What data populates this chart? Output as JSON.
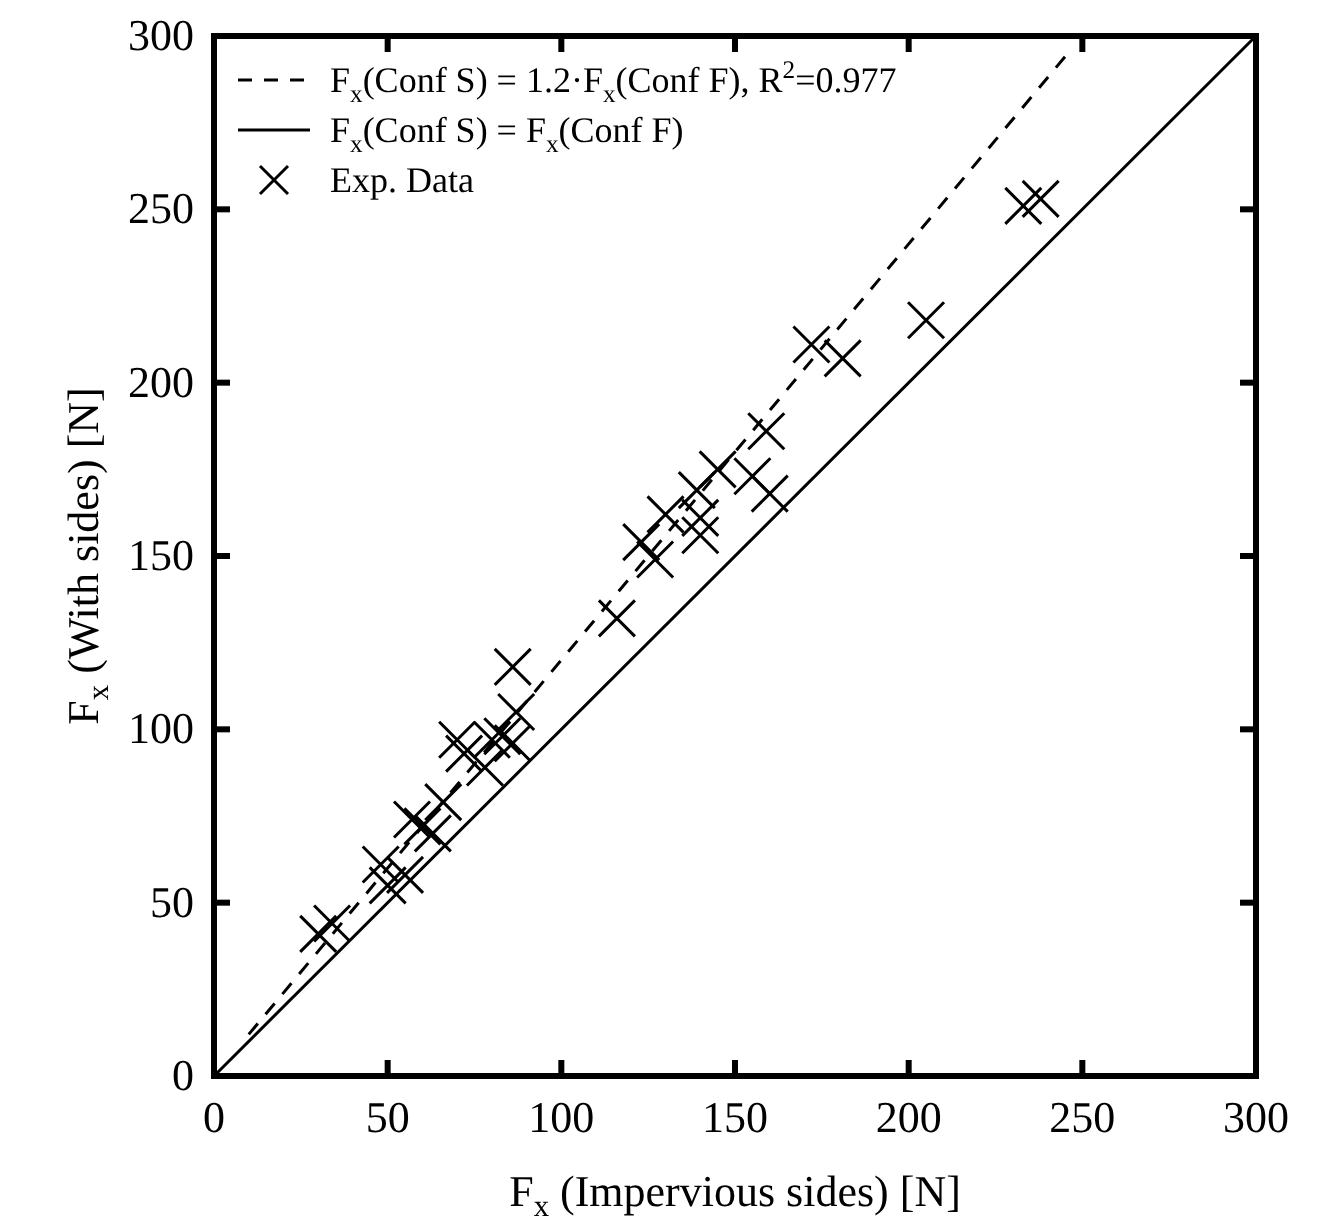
{
  "chart_data": {
    "type": "scatter",
    "xlabel": "F$_{x}$ (Impervious sides)  [N]",
    "ylabel": "F$_{x}$ (With sides)  [N]",
    "xlim": [
      0,
      300
    ],
    "ylim": [
      0,
      300
    ],
    "xticks": [
      0,
      50,
      100,
      150,
      200,
      250,
      300
    ],
    "yticks": [
      0,
      50,
      100,
      150,
      200,
      250,
      300
    ],
    "grid": false,
    "legend": "top left",
    "series": [
      {
        "name": "F$_{x}$(Conf S) = 1.2·F$_{x}$(Conf F), R$^{2}$=0.977",
        "type": "line",
        "line_style": "dashed",
        "marker": "none",
        "color": "#000000",
        "x": [
          10,
          245
        ],
        "values": [
          12,
          294
        ]
      },
      {
        "name": "F$_{x}$(Conf S) = F$_{x}$(Conf F)",
        "type": "line",
        "line_style": "solid",
        "marker": "none",
        "color": "#000000",
        "x": [
          0,
          300
        ],
        "values": [
          0,
          300
        ]
      },
      {
        "name": "Exp. Data",
        "type": "scatter",
        "marker": "cross",
        "color": "#000000",
        "x": [
          30,
          34,
          48,
          50,
          55,
          57,
          60,
          63,
          66,
          70,
          72,
          78,
          80,
          83,
          86,
          86,
          87,
          116,
          123,
          127,
          130,
          139,
          140,
          140,
          145,
          155,
          159,
          160,
          172,
          181,
          205,
          233,
          238
        ],
        "values": [
          41,
          44,
          61,
          55,
          58,
          74,
          72,
          70,
          79,
          97,
          93,
          89,
          97,
          98,
          96,
          118,
          105,
          132,
          154,
          149,
          162,
          169,
          156,
          161,
          175,
          173,
          186,
          168,
          211,
          207,
          218,
          251,
          253
        ]
      }
    ]
  }
}
